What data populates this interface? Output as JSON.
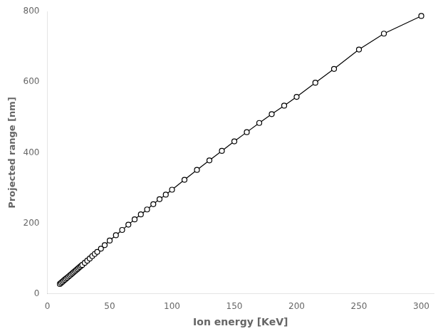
{
  "chart_data": {
    "type": "line",
    "xlabel": "Ion energy [KeV]",
    "ylabel": "Projected range [nm]",
    "x": [
      10,
      11,
      12,
      13,
      14,
      15,
      16,
      17,
      18,
      19,
      20,
      21,
      22,
      23,
      24,
      25,
      26,
      27,
      28,
      30,
      32,
      34,
      36,
      38,
      40,
      43,
      46,
      50,
      55,
      60,
      65,
      70,
      75,
      80,
      85,
      90,
      95,
      100,
      110,
      120,
      130,
      140,
      150,
      160,
      170,
      180,
      190,
      200,
      215,
      230,
      250,
      270,
      300
    ],
    "values": [
      28,
      31,
      34,
      37,
      40,
      43,
      46,
      49,
      52,
      55,
      58,
      61,
      64,
      67,
      70,
      73,
      76,
      79,
      82,
      88,
      94,
      100,
      107,
      113,
      119,
      128,
      138,
      151,
      166,
      181,
      196,
      211,
      225,
      239,
      254,
      268,
      281,
      295,
      323,
      351,
      378,
      405,
      432,
      458,
      484,
      509,
      533,
      558,
      598,
      637,
      692,
      737,
      787
    ],
    "xlim": [
      0,
      310
    ],
    "ylim": [
      0,
      800
    ],
    "xticks": [
      0,
      50,
      100,
      150,
      200,
      250,
      300
    ],
    "yticks": [
      0,
      200,
      400,
      600,
      800
    ],
    "color": "black",
    "marker": "circle",
    "line_style": "solid",
    "grid": false
  }
}
